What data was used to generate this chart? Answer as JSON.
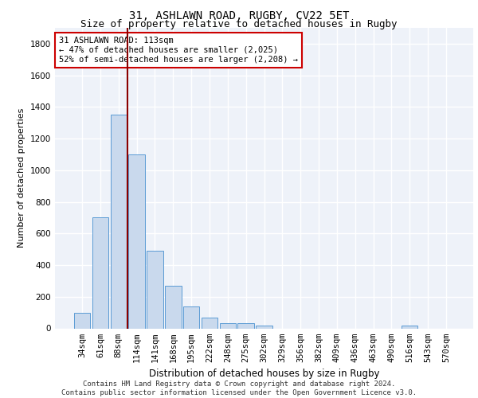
{
  "title1": "31, ASHLAWN ROAD, RUGBY, CV22 5ET",
  "title2": "Size of property relative to detached houses in Rugby",
  "xlabel": "Distribution of detached houses by size in Rugby",
  "ylabel": "Number of detached properties",
  "categories": [
    "34sqm",
    "61sqm",
    "88sqm",
    "114sqm",
    "141sqm",
    "168sqm",
    "195sqm",
    "222sqm",
    "248sqm",
    "275sqm",
    "302sqm",
    "329sqm",
    "356sqm",
    "382sqm",
    "409sqm",
    "436sqm",
    "463sqm",
    "490sqm",
    "516sqm",
    "543sqm",
    "570sqm"
  ],
  "values": [
    97,
    700,
    1350,
    1100,
    490,
    270,
    140,
    70,
    32,
    32,
    18,
    0,
    0,
    0,
    0,
    0,
    0,
    0,
    18,
    0,
    0
  ],
  "bar_color": "#c9d9ed",
  "bar_edge_color": "#5b9bd5",
  "vline_color": "#8b0000",
  "annotation_text": "31 ASHLAWN ROAD: 113sqm\n← 47% of detached houses are smaller (2,025)\n52% of semi-detached houses are larger (2,208) →",
  "annotation_box_color": "#ffffff",
  "annotation_edge_color": "#cc0000",
  "footer1": "Contains HM Land Registry data © Crown copyright and database right 2024.",
  "footer2": "Contains public sector information licensed under the Open Government Licence v3.0.",
  "ylim": [
    0,
    1900
  ],
  "yticks": [
    0,
    200,
    400,
    600,
    800,
    1000,
    1200,
    1400,
    1600,
    1800
  ],
  "bg_color": "#eef2f9",
  "grid_color": "#ffffff",
  "title1_fontsize": 10,
  "title2_fontsize": 9,
  "axis_label_fontsize": 8,
  "tick_fontsize": 7.5,
  "footer_fontsize": 6.5,
  "annot_fontsize": 7.5
}
